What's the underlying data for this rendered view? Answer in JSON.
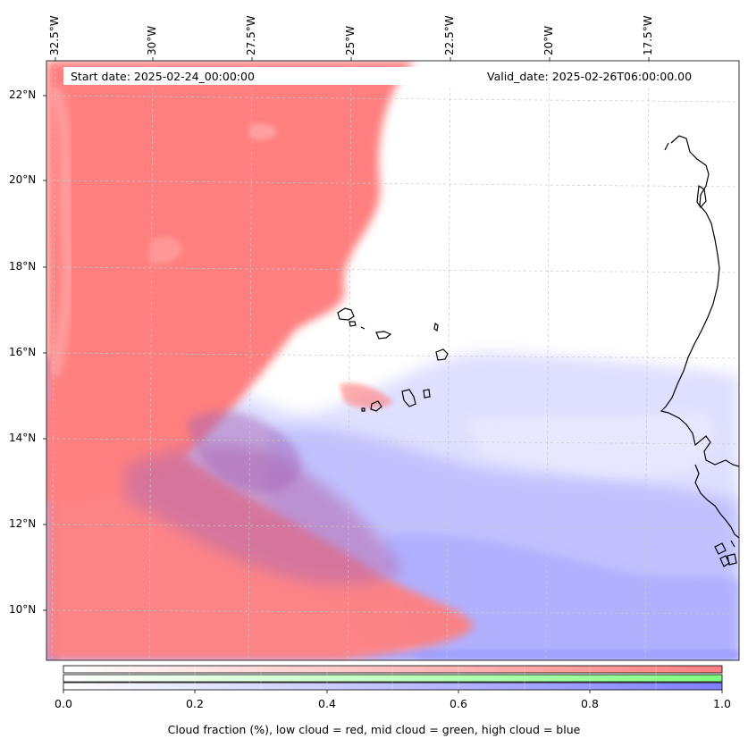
{
  "map": {
    "start_date_text": "Start date: 2025-02-24_00:00:00",
    "valid_date_text": "Valid_date: 2025-02-26T06:00:00.00",
    "lon_labels": [
      "32.5°W",
      "30°W",
      "27.5°W",
      "25°W",
      "22.5°W",
      "20°W",
      "17.5°W"
    ],
    "lat_labels": [
      "22°N",
      "20°N",
      "18°N",
      "16°N",
      "14°N",
      "12°N",
      "10°N"
    ],
    "layers": [
      {
        "name": "low cloud",
        "color": "#ff7f7f"
      },
      {
        "name": "mid cloud",
        "color": "#7fff7f"
      },
      {
        "name": "high cloud",
        "color": "#7f7fff"
      }
    ],
    "coastline_color": "#000000",
    "gridlines": true
  },
  "colorbar": {
    "ticks": [
      "0.0",
      "0.2",
      "0.4",
      "0.6",
      "0.8",
      "1.0"
    ],
    "range": [
      0.0,
      1.0
    ],
    "bands": [
      {
        "name": "low cloud",
        "color_start": "#ffffff",
        "color_end": "#ff7f7f"
      },
      {
        "name": "mid cloud",
        "color_start": "#ffffff",
        "color_end": "#7fff7f"
      },
      {
        "name": "high cloud",
        "color_start": "#ffffff",
        "color_end": "#7f7fff"
      }
    ],
    "caption": "Cloud fraction (%), low cloud = red, mid cloud = green, high cloud = blue"
  }
}
